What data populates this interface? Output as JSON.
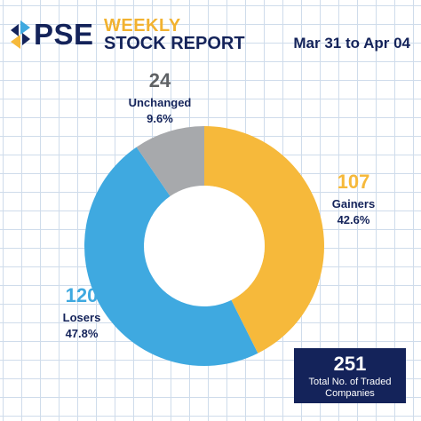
{
  "header": {
    "brand": "PSE",
    "title_line1": "WEEKLY",
    "title_line2": "STOCK REPORT",
    "date_range": "Mar 31 to Apr 04"
  },
  "colors": {
    "navy": "#14235a",
    "gainers": "#f6b93b",
    "losers": "#3fa9e0",
    "unchanged": "#a7a9ac"
  },
  "chart_data": {
    "type": "pie",
    "donut": true,
    "slices": [
      {
        "label": "Gainers",
        "value": 107,
        "percent": "42.6%",
        "color": "#f6b93b"
      },
      {
        "label": "Losers",
        "value": 120,
        "percent": "47.8%",
        "color": "#3fa9e0"
      },
      {
        "label": "Unchanged",
        "value": 24,
        "percent": "9.6%",
        "color": "#a7a9ac"
      }
    ]
  },
  "total": {
    "value": "251",
    "label": "Total No. of Traded Companies"
  }
}
